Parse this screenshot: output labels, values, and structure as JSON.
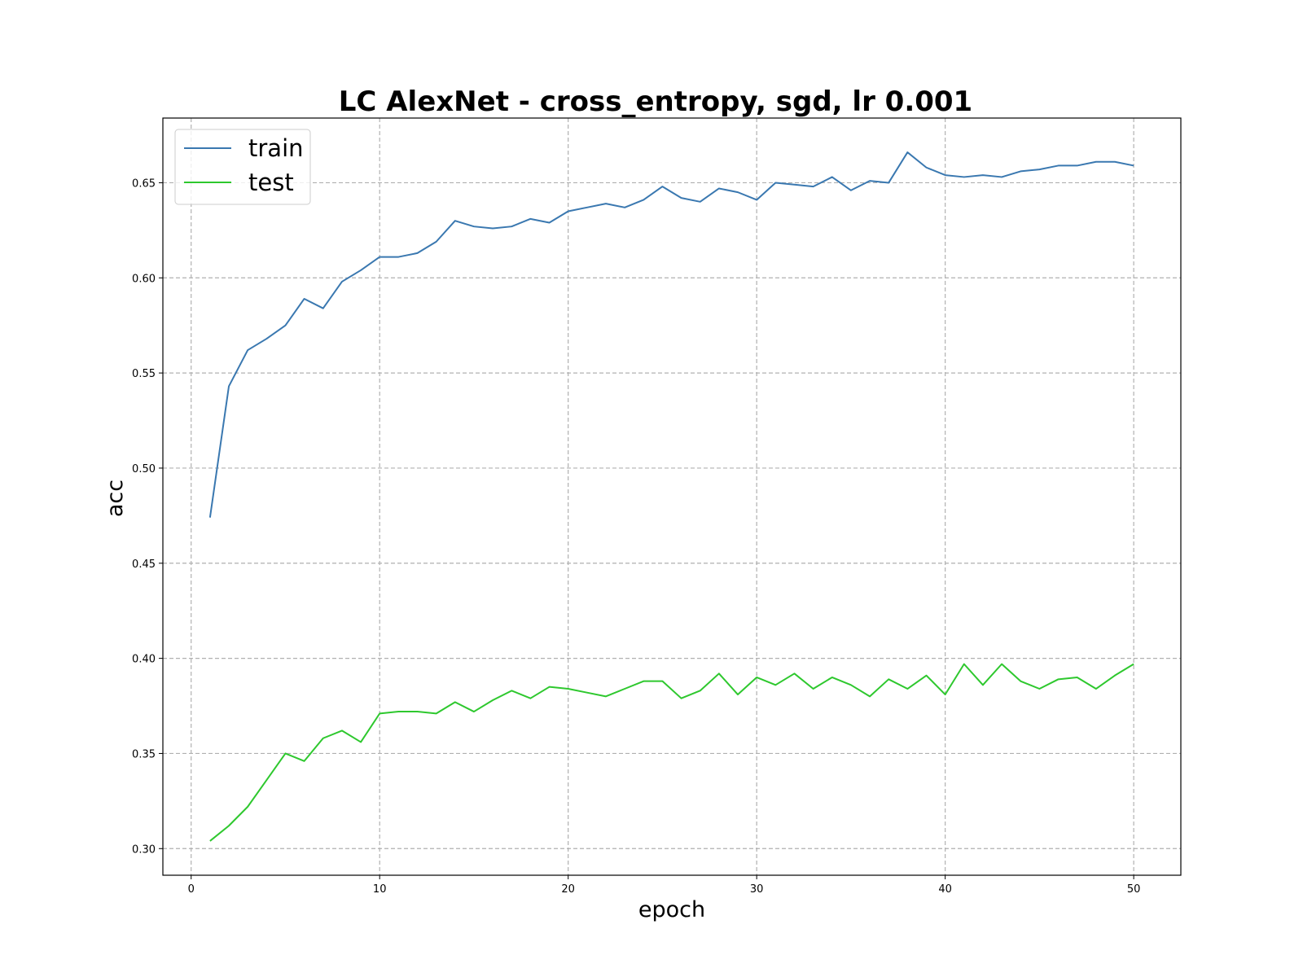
{
  "chart_data": {
    "type": "line",
    "title": "LC AlexNet - cross_entropy, sgd, lr 0.001",
    "xlabel": "epoch",
    "ylabel": "acc",
    "xlim": [
      -1.5,
      52.5
    ],
    "ylim": [
      0.286,
      0.684
    ],
    "xticks": [
      0,
      10,
      20,
      30,
      40,
      50
    ],
    "yticks": [
      0.3,
      0.35,
      0.4,
      0.45,
      0.5,
      0.55,
      0.6,
      0.65
    ],
    "grid": true,
    "legend_position": "top-left",
    "x": [
      1,
      2,
      3,
      4,
      5,
      6,
      7,
      8,
      9,
      10,
      11,
      12,
      13,
      14,
      15,
      16,
      17,
      18,
      19,
      20,
      21,
      22,
      23,
      24,
      25,
      26,
      27,
      28,
      29,
      30,
      31,
      32,
      33,
      34,
      35,
      36,
      37,
      38,
      39,
      40,
      41,
      42,
      43,
      44,
      45,
      46,
      47,
      48,
      49,
      50
    ],
    "series": [
      {
        "name": "train",
        "color": "#3a78b0",
        "values": [
          0.474,
          0.543,
          0.562,
          0.568,
          0.575,
          0.589,
          0.584,
          0.598,
          0.604,
          0.611,
          0.611,
          0.613,
          0.619,
          0.63,
          0.627,
          0.626,
          0.627,
          0.631,
          0.629,
          0.635,
          0.637,
          0.639,
          0.637,
          0.641,
          0.648,
          0.642,
          0.64,
          0.647,
          0.645,
          0.641,
          0.65,
          0.649,
          0.648,
          0.653,
          0.646,
          0.651,
          0.65,
          0.666,
          0.658,
          0.654,
          0.653,
          0.654,
          0.653,
          0.656,
          0.657,
          0.659,
          0.659,
          0.661,
          0.661,
          0.659
        ]
      },
      {
        "name": "test",
        "color": "#2ec82e",
        "values": [
          0.304,
          0.312,
          0.322,
          0.336,
          0.35,
          0.346,
          0.358,
          0.362,
          0.356,
          0.371,
          0.372,
          0.372,
          0.371,
          0.377,
          0.372,
          0.378,
          0.383,
          0.379,
          0.385,
          0.384,
          0.382,
          0.38,
          0.384,
          0.388,
          0.388,
          0.379,
          0.383,
          0.392,
          0.381,
          0.39,
          0.386,
          0.392,
          0.384,
          0.39,
          0.386,
          0.38,
          0.389,
          0.384,
          0.391,
          0.381,
          0.397,
          0.386,
          0.397,
          0.388,
          0.384,
          0.389,
          0.39,
          0.384,
          0.391,
          0.397
        ]
      }
    ]
  }
}
